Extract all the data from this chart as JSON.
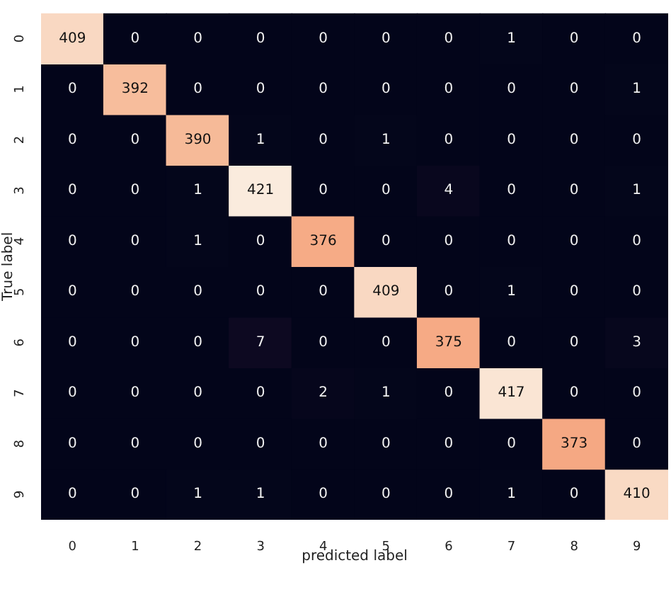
{
  "chart_data": {
    "type": "heatmap",
    "xlabel": "predicted label",
    "ylabel": "True label",
    "categories": [
      "0",
      "1",
      "2",
      "3",
      "4",
      "5",
      "6",
      "7",
      "8",
      "9"
    ],
    "y_categories": [
      "0",
      "1",
      "2",
      "3",
      "4",
      "5",
      "6",
      "7",
      "8",
      "9"
    ],
    "cells": [
      [
        409,
        0,
        0,
        0,
        0,
        0,
        0,
        1,
        0,
        0
      ],
      [
        0,
        392,
        0,
        0,
        0,
        0,
        0,
        0,
        0,
        1
      ],
      [
        0,
        0,
        390,
        1,
        0,
        1,
        0,
        0,
        0,
        0
      ],
      [
        0,
        0,
        1,
        421,
        0,
        0,
        4,
        0,
        0,
        1
      ],
      [
        0,
        0,
        1,
        0,
        376,
        0,
        0,
        0,
        0,
        0
      ],
      [
        0,
        0,
        0,
        0,
        0,
        409,
        0,
        1,
        0,
        0
      ],
      [
        0,
        0,
        0,
        7,
        0,
        0,
        375,
        0,
        0,
        3
      ],
      [
        0,
        0,
        0,
        0,
        2,
        1,
        0,
        417,
        0,
        0
      ],
      [
        0,
        0,
        0,
        0,
        0,
        0,
        0,
        0,
        373,
        0
      ],
      [
        0,
        0,
        1,
        1,
        0,
        0,
        0,
        1,
        0,
        410
      ]
    ],
    "data_labels": true
  }
}
